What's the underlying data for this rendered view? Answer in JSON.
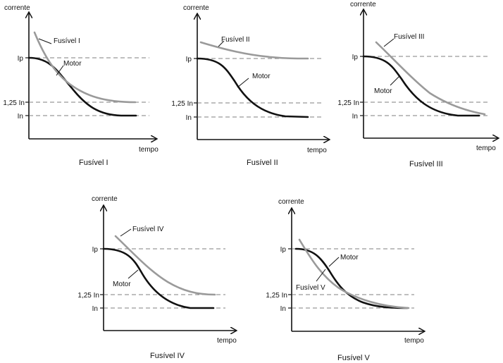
{
  "labels": {
    "y_axis": "corrente",
    "x_axis": "tempo",
    "ip": "Ip",
    "in125": "1,25 In",
    "in": "In",
    "motor": "Motor"
  },
  "panels": [
    {
      "fuse_label": "Fusível  I",
      "caption": "Fusível I"
    },
    {
      "fuse_label": "Fusível  II",
      "caption": "Fusível II"
    },
    {
      "fuse_label": "Fusível  III",
      "caption": "Fusível III"
    },
    {
      "fuse_label": "Fusível  IV",
      "caption": "Fusível IV"
    },
    {
      "fuse_label": "Fusível  V",
      "caption": "Fusível V"
    }
  ]
}
